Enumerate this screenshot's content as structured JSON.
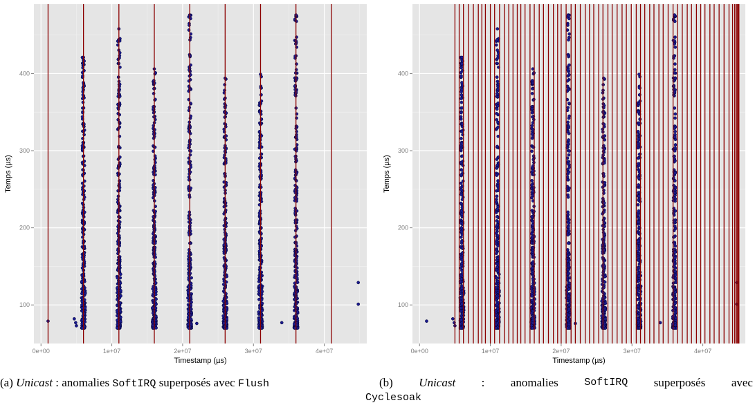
{
  "colors": {
    "panel": "#e5e5e5",
    "grid": "#ffffff",
    "point": "#1a1a8c",
    "point_stroke": "#000033",
    "vline": "#8b0000",
    "tick": "#7f7f7f"
  },
  "chart_data": [
    {
      "type": "scatter",
      "id": "a",
      "xlabel": "Timestamp (µs)",
      "ylabel": "Temps (µs)",
      "xlim": [
        -1000000,
        46000000
      ],
      "ylim": [
        50,
        490
      ],
      "xticks": [
        0,
        10000000,
        20000000,
        30000000,
        40000000
      ],
      "xtick_labels": [
        "0e+00",
        "1e+07",
        "2e+07",
        "3e+07",
        "4e+07"
      ],
      "yticks": [
        100,
        200,
        300,
        400
      ],
      "ytick_labels": [
        "100",
        "200",
        "300",
        "400"
      ],
      "grid": true,
      "clusters_x": [
        6000000,
        11000000,
        16000000,
        21000000,
        26000000,
        31000000,
        36000000
      ],
      "cluster_tops": [
        421,
        458,
        406,
        476,
        394,
        399,
        476
      ],
      "isolated_points": [
        [
          1000000,
          79
        ],
        [
          4700000,
          82
        ],
        [
          4900000,
          77
        ],
        [
          5000000,
          73
        ],
        [
          21000000,
          475
        ],
        [
          22000000,
          76
        ],
        [
          34000000,
          77
        ],
        [
          44800000,
          129
        ],
        [
          44800000,
          101
        ]
      ],
      "vlines": [
        1000000,
        6000000,
        11000000,
        16000000,
        21000000,
        26000000,
        31000000,
        36000000,
        41000000
      ]
    },
    {
      "type": "scatter",
      "id": "b",
      "xlabel": "Timestamp (µs)",
      "ylabel": "Temps (µs)",
      "xlim": [
        -1000000,
        46000000
      ],
      "ylim": [
        50,
        490
      ],
      "xticks": [
        0,
        10000000,
        20000000,
        30000000,
        40000000
      ],
      "xtick_labels": [
        "0e+00",
        "1e+07",
        "2e+07",
        "3e+07",
        "4e+07"
      ],
      "yticks": [
        100,
        200,
        300,
        400
      ],
      "ytick_labels": [
        "100",
        "200",
        "300",
        "400"
      ],
      "grid": true,
      "clusters_x": [
        6000000,
        11000000,
        16000000,
        21000000,
        26000000,
        31000000,
        36000000
      ],
      "cluster_tops": [
        421,
        458,
        406,
        476,
        394,
        399,
        476
      ],
      "isolated_points": [
        [
          1000000,
          79
        ],
        [
          4700000,
          82
        ],
        [
          4900000,
          77
        ],
        [
          5000000,
          73
        ],
        [
          21000000,
          475
        ],
        [
          22000000,
          76
        ],
        [
          34000000,
          77
        ],
        [
          44800000,
          129
        ],
        [
          44800000,
          101
        ]
      ],
      "vlines": [
        5000000,
        5600000,
        6200000,
        6900000,
        7600000,
        8300000,
        8800000,
        9300000,
        10000000,
        10600000,
        11300000,
        12000000,
        12600000,
        13200000,
        13800000,
        14300000,
        14900000,
        15600000,
        16200000,
        16900000,
        17500000,
        18200000,
        18900000,
        19500000,
        20000000,
        20700000,
        21400000,
        22000000,
        22700000,
        23400000,
        24000000,
        24600000,
        25300000,
        25900000,
        26600000,
        27200000,
        27900000,
        28600000,
        29200000,
        29900000,
        30600000,
        31200000,
        31800000,
        32500000,
        33100000,
        33800000,
        34400000,
        35100000,
        35800000,
        36400000,
        37100000,
        37800000,
        38400000,
        39100000,
        39700000,
        40300000,
        41000000,
        41600000,
        42300000,
        43000000,
        43700000,
        44200000,
        44500000,
        44700000,
        44850000,
        45000000,
        45100000
      ]
    }
  ],
  "captions": {
    "a": {
      "num": "(a)",
      "italic": "Unicast",
      "t1": " : anomalies ",
      "mono1": "SoftIRQ",
      "t2": " superposés avec ",
      "mono2": "Flush"
    },
    "b": {
      "num": "(b)",
      "italic": "Unicast",
      "sep": ":",
      "w1": "anomalies",
      "mono1": "SoftIRQ",
      "w2": "superposés",
      "w3": "avec",
      "mono2": "Cyclesoak"
    }
  }
}
